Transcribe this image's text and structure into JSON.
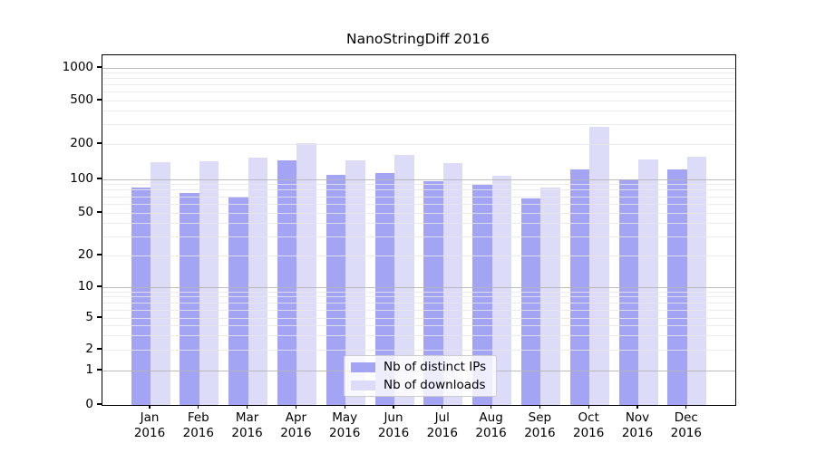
{
  "chart_data": {
    "type": "bar",
    "title": "NanoStringDiff 2016",
    "year_label": "2016",
    "categories": [
      "Jan",
      "Feb",
      "Mar",
      "Apr",
      "May",
      "Jun",
      "Jul",
      "Aug",
      "Sep",
      "Oct",
      "Nov",
      "Dec"
    ],
    "series": [
      {
        "name": "Nb of distinct IPs",
        "color": "#a4a4f4",
        "values": [
          85,
          75,
          70,
          146,
          110,
          113,
          97,
          89,
          68,
          122,
          100,
          121
        ]
      },
      {
        "name": "Nb of downloads",
        "color": "#dcdcf8",
        "values": [
          139,
          143,
          153,
          204,
          144,
          163,
          137,
          107,
          85,
          290,
          149,
          156
        ]
      }
    ],
    "y_ticks": [
      1000,
      500,
      200,
      100,
      50,
      20,
      10,
      5,
      2,
      1,
      0
    ],
    "yscale": "log-with-linear-zero",
    "ylim": [
      0,
      1400
    ],
    "xlabel": "",
    "ylabel": "",
    "grid": true,
    "legend_position": "bottom-center",
    "colors": {
      "major_grid": "#b5b5b5",
      "minor_grid": "#e8e8e8",
      "axis": "#000000",
      "background": "#ffffff"
    }
  }
}
